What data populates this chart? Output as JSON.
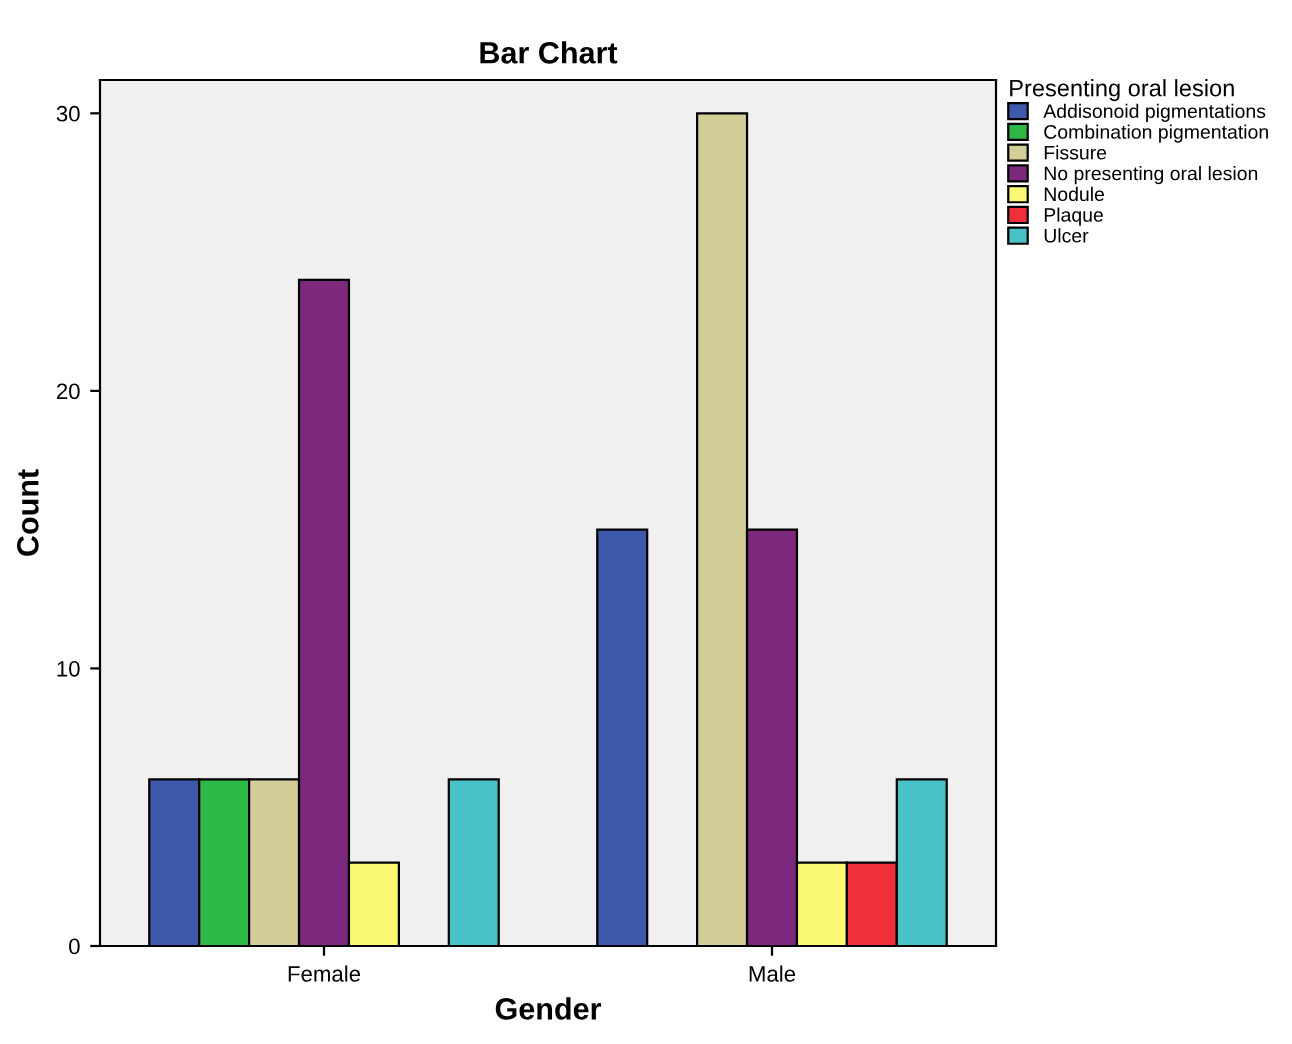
{
  "chart_data": {
    "type": "bar",
    "title": "Bar Chart",
    "xlabel": "Gender",
    "ylabel": "Count",
    "legend_title": "Presenting oral lesion",
    "categories": [
      "Female",
      "Male"
    ],
    "series": [
      {
        "name": "Addisonoid pigmentations",
        "color": "#3e58ac",
        "values": [
          6,
          15
        ]
      },
      {
        "name": "Combination pigmentation",
        "color": "#2eb848",
        "values": [
          6,
          null
        ]
      },
      {
        "name": "Fissure",
        "color": "#d3ce97",
        "values": [
          6,
          30
        ]
      },
      {
        "name": "No presenting oral lesion",
        "color": "#7b287d",
        "values": [
          24,
          15
        ]
      },
      {
        "name": "Nodule",
        "color": "#fbf873",
        "values": [
          3,
          3
        ]
      },
      {
        "name": "Plaque",
        "color": "#ef3038",
        "values": [
          null,
          3
        ]
      },
      {
        "name": "Ulcer",
        "color": "#48c1c7",
        "values": [
          6,
          6
        ]
      }
    ],
    "ylim": [
      0,
      31.2
    ],
    "yticks": [
      0,
      10,
      20,
      30
    ],
    "grid": false,
    "legend": "top right"
  }
}
